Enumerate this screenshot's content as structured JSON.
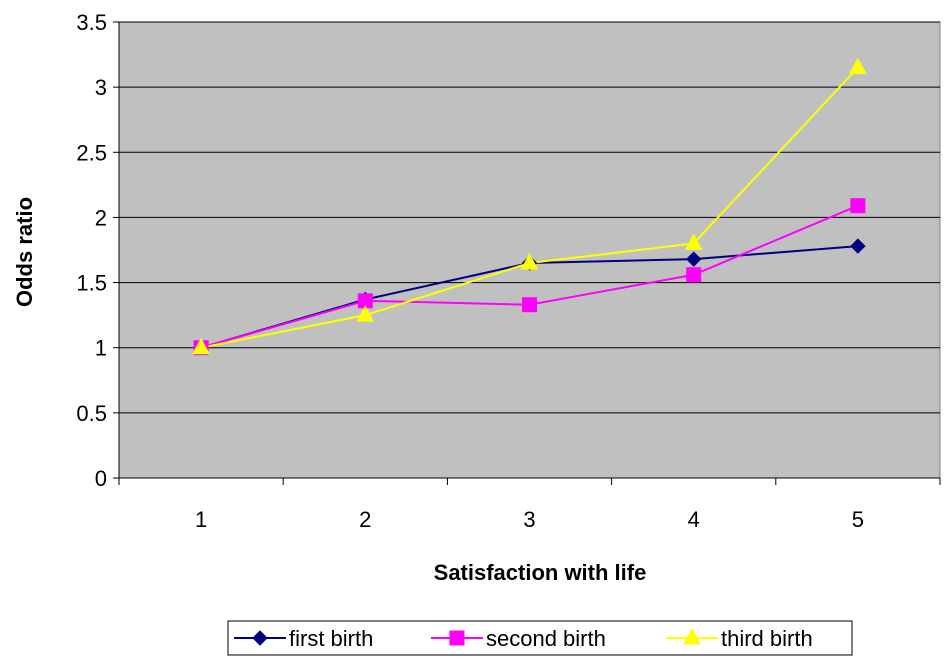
{
  "chart_data": {
    "type": "line",
    "xlabel": "Satisfaction with life",
    "ylabel": "Odds ratio",
    "categories": [
      "1",
      "2",
      "3",
      "4",
      "5"
    ],
    "ylim": [
      0,
      3.5
    ],
    "yticks": [
      "0",
      "0.5",
      "1",
      "1.5",
      "2",
      "2.5",
      "3",
      "3.5"
    ],
    "grid": true,
    "plot_background": "#c0c0c0",
    "legend_position": "bottom",
    "series": [
      {
        "name": "first birth",
        "values": [
          1.0,
          1.37,
          1.65,
          1.68,
          1.78
        ],
        "color": "#000080",
        "marker": "diamond"
      },
      {
        "name": "second birth",
        "values": [
          1.0,
          1.36,
          1.33,
          1.56,
          2.09
        ],
        "color": "#ff00ff",
        "marker": "square"
      },
      {
        "name": "third birth",
        "values": [
          1.0,
          1.25,
          1.65,
          1.8,
          3.15
        ],
        "color": "#ffff00",
        "marker": "triangle"
      }
    ]
  }
}
